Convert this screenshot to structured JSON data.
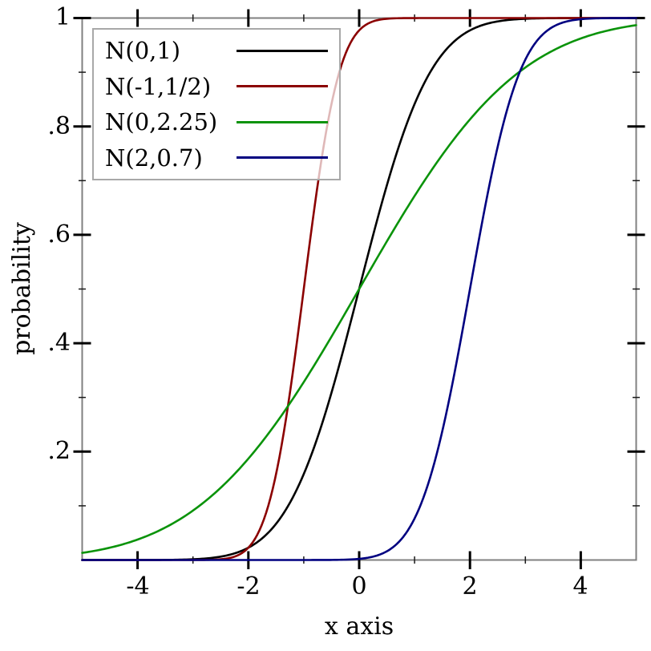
{
  "figure": {
    "background": "#ffffff",
    "axis_color": "#808080",
    "major_tick_color": "#000000",
    "minor_tick_color": "#1a1a1a",
    "legend_border_color": "#a8a8a8"
  },
  "chart_data": {
    "type": "line",
    "title": "",
    "xlabel": "x axis",
    "ylabel": "probability",
    "xlim": [
      -5,
      5
    ],
    "ylim": [
      0,
      1
    ],
    "grid": false,
    "curve_formula": "y = Phi((x - mu) / sigma)  (normal cumulative distribution function)",
    "x_major_ticks": [
      -4,
      -2,
      0,
      2,
      4
    ],
    "x_major_tick_labels": [
      "-4",
      "-2",
      "0",
      "2",
      "4"
    ],
    "x_minor_ticks": [
      -3,
      -1,
      1,
      3
    ],
    "y_major_ticks": [
      1,
      0.8,
      0.6,
      0.4,
      0.2
    ],
    "y_major_tick_labels": [
      "1",
      ".8",
      ".6",
      ".4",
      ".2"
    ],
    "y_minor_ticks": [
      0.1,
      0.3,
      0.5,
      0.7,
      0.9
    ],
    "x_samples": [
      -5,
      -4,
      -3,
      -2,
      -1,
      0,
      1,
      2,
      3,
      4,
      5
    ],
    "series": [
      {
        "name": "N(0,1)",
        "mu": 0,
        "sigma": 1,
        "color": "#000000",
        "points": [
          0.0,
          0.0,
          0.0013,
          0.0228,
          0.1587,
          0.5,
          0.8413,
          0.9772,
          0.9987,
          1.0,
          1.0
        ]
      },
      {
        "name": "N(-1,1/2)",
        "mu": -1,
        "sigma": 0.5,
        "color": "#8b0000",
        "points": [
          0.0,
          0.0,
          0.0,
          0.0228,
          0.5,
          0.9772,
          1.0,
          1.0,
          1.0,
          1.0,
          1.0
        ]
      },
      {
        "name": "N(0,2.25)",
        "mu": 0,
        "sigma": 2.25,
        "color": "#0a930a",
        "points": [
          0.0131,
          0.0377,
          0.0912,
          0.187,
          0.3284,
          0.5,
          0.6716,
          0.813,
          0.9088,
          0.9623,
          0.9869
        ]
      },
      {
        "name": "N(2,0.7)",
        "mu": 2,
        "sigma": 0.7,
        "color": "#000080",
        "points": [
          0.0,
          0.0,
          0.0,
          0.0,
          0.0,
          0.0021,
          0.0766,
          0.5,
          0.9234,
          0.9979,
          1.0
        ]
      }
    ],
    "legend": {
      "position": "top-left",
      "entries": [
        "N(0,1)",
        "N(-1,1/2)",
        "N(0,2.25)",
        "N(2,0.7)"
      ]
    }
  }
}
